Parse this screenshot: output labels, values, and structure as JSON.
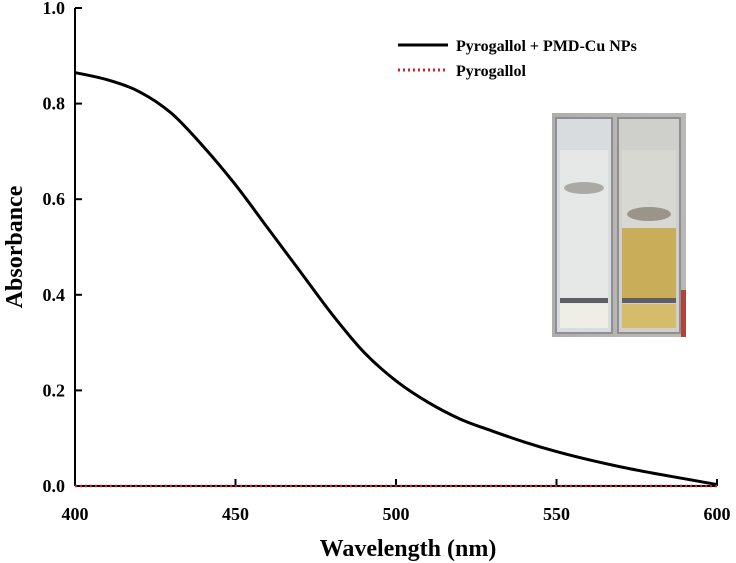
{
  "chart_data": {
    "type": "line",
    "title": "",
    "xlabel": "Wavelength (nm)",
    "ylabel": "Absorbance",
    "xlim": [
      400,
      600
    ],
    "ylim": [
      0.0,
      1.0
    ],
    "x_ticks": [
      "400",
      "450",
      "500",
      "550",
      "600"
    ],
    "y_ticks": [
      "0.0",
      "0.2",
      "0.4",
      "0.6",
      "0.8",
      "1.0"
    ],
    "grid": false,
    "legend_position": "top-right",
    "series": [
      {
        "name": "Pyrogallol + PMD-Cu NPs",
        "color": "#000000",
        "style": "solid",
        "x": [
          400,
          410,
          420,
          430,
          440,
          450,
          460,
          470,
          480,
          490,
          500,
          510,
          520,
          530,
          540,
          550,
          560,
          570,
          580,
          590,
          600
        ],
        "y": [
          0.865,
          0.85,
          0.825,
          0.78,
          0.71,
          0.63,
          0.54,
          0.45,
          0.36,
          0.28,
          0.22,
          0.175,
          0.14,
          0.115,
          0.092,
          0.072,
          0.055,
          0.04,
          0.027,
          0.015,
          0.003
        ]
      },
      {
        "name": "Pyrogallol",
        "color": "#d42020",
        "style": "dotted",
        "x": [
          400,
          450,
          500,
          550,
          600
        ],
        "y": [
          0.0,
          0.0,
          0.0,
          0.0,
          0.0
        ]
      }
    ],
    "inset": "photo of two cuvettes: left colorless, right yellow"
  }
}
